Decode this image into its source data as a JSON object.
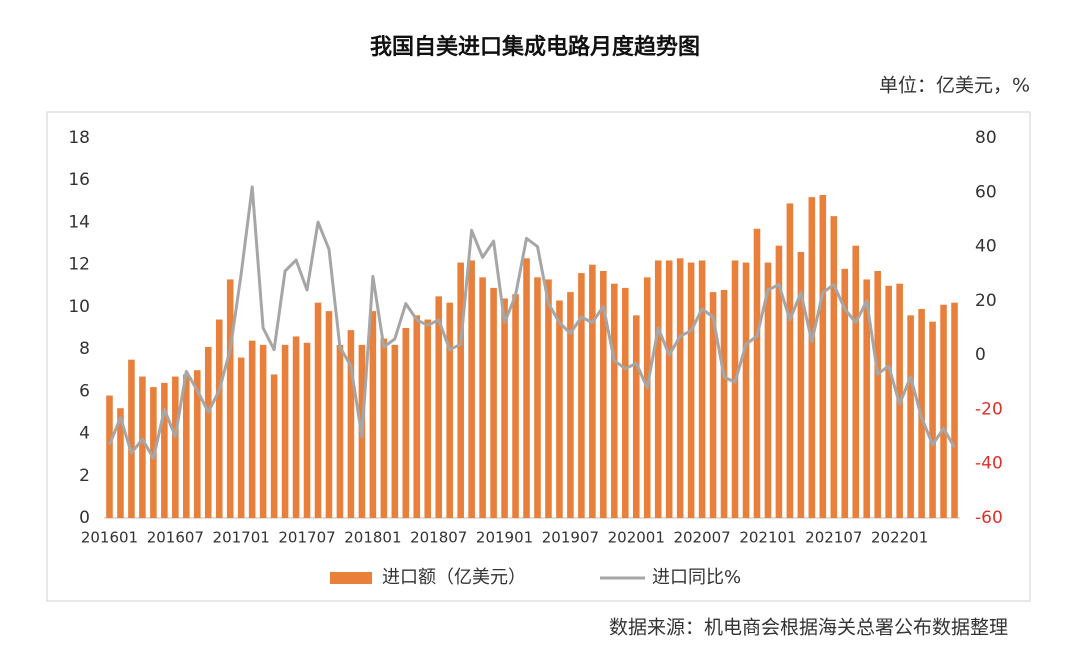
{
  "chart_data": {
    "type": "bar_line",
    "title": "我国自美进口集成电路月度趋势图",
    "unit_label": "单位：亿美元，%",
    "source": "数据来源：机电商会根据海关总署公布数据整理",
    "categories": [
      "201601",
      null,
      null,
      null,
      null,
      null,
      "201607",
      null,
      null,
      null,
      null,
      null,
      "201701",
      null,
      null,
      null,
      null,
      null,
      "201707",
      null,
      null,
      null,
      null,
      null,
      "201801",
      null,
      null,
      null,
      null,
      null,
      "201807",
      null,
      null,
      null,
      null,
      null,
      "201901",
      null,
      null,
      null,
      null,
      null,
      "201907",
      null,
      null,
      null,
      null,
      null,
      "202001",
      null,
      null,
      null,
      null,
      null,
      "202007",
      null,
      null,
      null,
      null,
      null,
      "202101",
      null,
      null,
      null,
      null,
      null,
      "202107",
      null,
      null,
      null,
      null,
      null,
      "202201",
      null,
      null,
      null,
      null,
      null
    ],
    "series": [
      {
        "name": "进口额（亿美元）",
        "color": "#e8803c",
        "type": "bar",
        "axis": "y",
        "values": [
          5.8,
          5.2,
          7.5,
          6.7,
          6.2,
          6.4,
          6.7,
          6.8,
          7.0,
          8.1,
          9.4,
          11.3,
          7.6,
          8.4,
          8.2,
          6.8,
          8.2,
          8.6,
          8.3,
          10.2,
          9.8,
          8.2,
          8.9,
          8.2,
          9.8,
          8.5,
          8.2,
          9.0,
          9.6,
          9.4,
          10.5,
          10.2,
          12.1,
          12.2,
          11.4,
          10.9,
          10.4,
          10.6,
          12.3,
          11.4,
          11.3,
          10.3,
          10.7,
          11.6,
          12.0,
          11.7,
          11.1,
          10.9,
          9.6,
          11.4,
          12.2,
          12.2,
          12.3,
          12.1,
          12.2,
          10.7,
          10.8,
          12.2,
          12.1,
          13.7,
          12.1,
          12.9,
          14.9,
          12.6,
          15.2,
          15.3,
          14.3,
          11.8,
          12.9,
          11.3,
          11.7,
          11.0,
          11.1,
          9.6,
          9.9,
          9.3,
          10.1,
          10.2
        ]
      },
      {
        "name": "进口同比%",
        "color": "#a6a6a6",
        "type": "line",
        "axis": "y2",
        "values": [
          -33,
          -23,
          -36,
          -31,
          -38,
          -20,
          -30,
          -6,
          -13,
          -21,
          -13,
          2,
          30,
          62,
          10,
          2,
          31,
          35,
          24,
          49,
          39,
          3,
          -4,
          -30,
          29,
          3,
          6,
          19,
          13,
          11,
          13,
          2,
          4,
          46,
          36,
          42,
          12,
          22,
          43,
          40,
          19,
          12,
          8,
          14,
          12,
          18,
          -2,
          -5,
          -3,
          -12,
          10,
          0,
          7,
          9,
          17,
          14,
          -8,
          -10,
          4,
          7,
          24,
          26,
          13,
          23,
          5,
          23,
          26,
          17,
          12,
          20,
          -7,
          -4,
          -18,
          -8,
          -23,
          -33,
          -27,
          -34
        ]
      }
    ],
    "ylim": [
      0,
      18
    ],
    "yticks": [
      0,
      2,
      4,
      6,
      8,
      10,
      12,
      14,
      16,
      18
    ],
    "y2lim": [
      -60,
      80
    ],
    "y2ticks": [
      -60,
      -40,
      -20,
      0,
      20,
      40,
      60,
      80
    ],
    "y2_negative_tick_color": "#e0302a",
    "grid": false,
    "legend": "bottom"
  }
}
